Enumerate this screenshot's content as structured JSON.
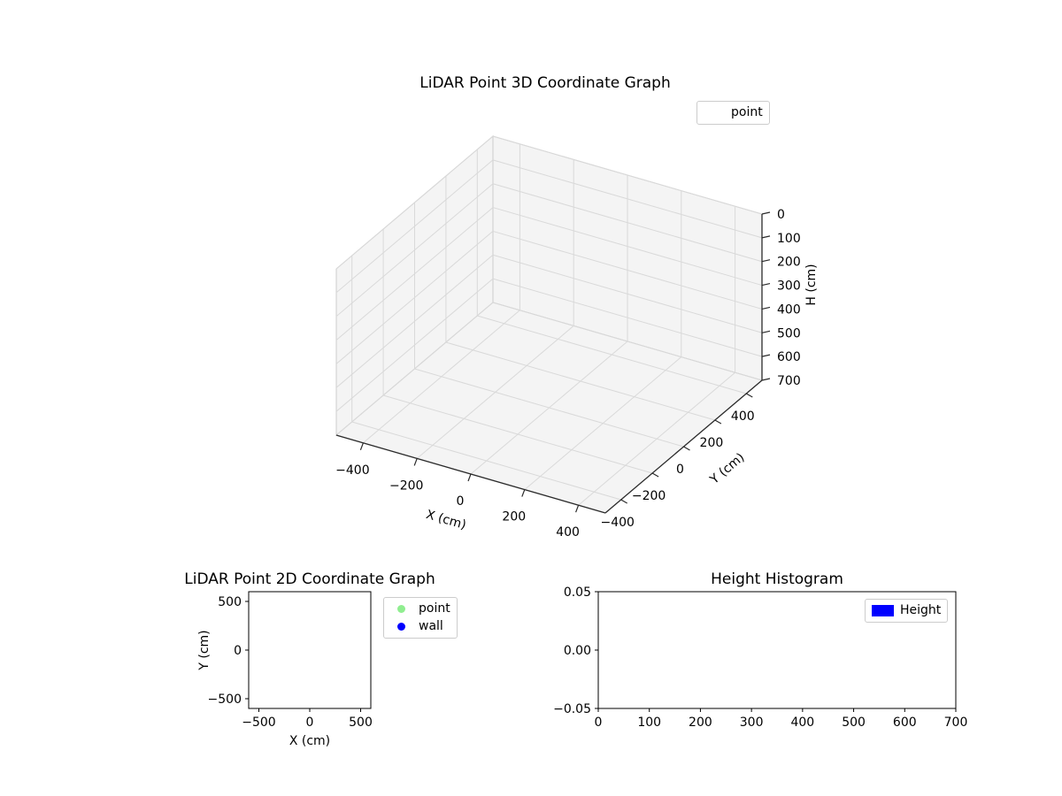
{
  "figure": {
    "background": "#ffffff",
    "text_color": "#000000"
  },
  "chart_data": [
    {
      "id": "lidar3d",
      "type": "scatter3d",
      "title": "LiDAR Point 3D Coordinate Graph",
      "xlabel": "X (cm)",
      "ylabel": "Y (cm)",
      "zlabel": "H (cm)",
      "xlim": [
        -500,
        500
      ],
      "ylim": [
        -500,
        500
      ],
      "zlim": [
        0,
        700
      ],
      "z_axis_inverted": true,
      "xticks": [
        -400,
        -200,
        0,
        200,
        400
      ],
      "yticks": [
        -400,
        -200,
        0,
        200,
        400
      ],
      "zticks": [
        0,
        100,
        200,
        300,
        400,
        500,
        600,
        700
      ],
      "grid": true,
      "pane_color": "#f4f4f4",
      "grid_color": "#d9d9d9",
      "legend": {
        "position": "upper-right",
        "entries": [
          {
            "label": "point",
            "marker": "none"
          }
        ]
      },
      "series": [
        {
          "name": "point",
          "points": []
        }
      ]
    },
    {
      "id": "lidar2d",
      "type": "scatter",
      "title": "LiDAR Point 2D Coordinate Graph",
      "xlabel": "X (cm)",
      "ylabel": "Y (cm)",
      "xlim": [
        -600,
        600
      ],
      "ylim": [
        -600,
        600
      ],
      "xticks": [
        -500,
        0,
        500
      ],
      "yticks": [
        -500,
        0,
        500
      ],
      "grid": false,
      "legend": {
        "position": "outside-right",
        "entries": [
          {
            "label": "point",
            "marker": "circle",
            "color": "#90ee90"
          },
          {
            "label": "wall",
            "marker": "circle",
            "color": "#0000ff"
          }
        ]
      },
      "series": [
        {
          "name": "point",
          "points": []
        },
        {
          "name": "wall",
          "points": []
        }
      ]
    },
    {
      "id": "height-hist",
      "type": "histogram",
      "title": "Height Histogram",
      "xlabel": "",
      "ylabel": "",
      "xlim": [
        0,
        700
      ],
      "ylim": [
        -0.05,
        0.05
      ],
      "xticks": [
        0,
        100,
        200,
        300,
        400,
        500,
        600,
        700
      ],
      "yticks": [
        -0.05,
        0,
        0.05
      ],
      "ytick_labels": [
        "−0.05",
        "0.00",
        "0.05"
      ],
      "grid": false,
      "legend": {
        "position": "upper-right",
        "entries": [
          {
            "label": "Height",
            "marker": "rect",
            "color": "#0000ff"
          }
        ]
      },
      "values": []
    }
  ]
}
